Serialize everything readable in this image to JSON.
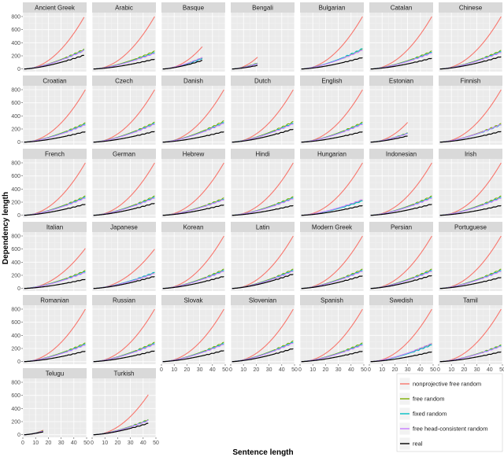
{
  "chart_data": {
    "type": "line",
    "layout": "faceted",
    "xlabel": "Sentence length",
    "ylabel": "Dependency length",
    "xlim": [
      0,
      50
    ],
    "ylim": [
      -40,
      860
    ],
    "x_ticks": [
      0,
      10,
      20,
      30,
      40,
      50
    ],
    "y_ticks": [
      0,
      200,
      400,
      600,
      800
    ],
    "grid": true,
    "legend_position": "bottom-right",
    "series": [
      {
        "name": "nonprojective free random",
        "color": "#f8766d"
      },
      {
        "name": "free random",
        "color": "#7cae00"
      },
      {
        "name": "fixed random",
        "color": "#00bfc4"
      },
      {
        "name": "free head-consistent random",
        "color": "#c77cff"
      },
      {
        "name": "real",
        "color": "#000000"
      }
    ],
    "panels": [
      {
        "language": "Ancient Greek",
        "max_n": 48,
        "nonprojective_end": 790,
        "free_end": 300,
        "fixed_end": 285,
        "head_end": 280,
        "real_end": 210
      },
      {
        "language": "Arabic",
        "max_n": 49,
        "nonprojective_end": 800,
        "free_end": 270,
        "fixed_end": 250,
        "head_end": 240,
        "real_end": 150
      },
      {
        "language": "Basque",
        "max_n": 32,
        "nonprojective_end": 340,
        "free_end": 170,
        "fixed_end": 160,
        "head_end": 175,
        "real_end": 130
      },
      {
        "language": "Bengali",
        "max_n": 21,
        "nonprojective_end": 180,
        "free_end": 90,
        "fixed_end": 85,
        "head_end": 80,
        "real_end": 55
      },
      {
        "language": "Bulgarian",
        "max_n": 49,
        "nonprojective_end": 800,
        "free_end": 300,
        "fixed_end": 310,
        "head_end": 290,
        "real_end": 175
      },
      {
        "language": "Catalan",
        "max_n": 49,
        "nonprojective_end": 800,
        "free_end": 270,
        "fixed_end": 255,
        "head_end": 245,
        "real_end": 165
      },
      {
        "language": "Chinese",
        "max_n": 49,
        "nonprojective_end": 800,
        "free_end": 280,
        "fixed_end": 265,
        "head_end": 255,
        "real_end": 190
      },
      {
        "language": "Croatian",
        "max_n": 49,
        "nonprojective_end": 800,
        "free_end": 290,
        "fixed_end": 275,
        "head_end": 265,
        "real_end": 160
      },
      {
        "language": "Czech",
        "max_n": 49,
        "nonprojective_end": 800,
        "free_end": 300,
        "fixed_end": 285,
        "head_end": 275,
        "real_end": 165
      },
      {
        "language": "Danish",
        "max_n": 49,
        "nonprojective_end": 800,
        "free_end": 320,
        "fixed_end": 300,
        "head_end": 290,
        "real_end": 160
      },
      {
        "language": "Dutch",
        "max_n": 49,
        "nonprojective_end": 800,
        "free_end": 310,
        "fixed_end": 290,
        "head_end": 280,
        "real_end": 200
      },
      {
        "language": "English",
        "max_n": 49,
        "nonprojective_end": 800,
        "free_end": 300,
        "fixed_end": 285,
        "head_end": 275,
        "real_end": 160
      },
      {
        "language": "Estonian",
        "max_n": 30,
        "nonprojective_end": 300,
        "free_end": 140,
        "fixed_end": 135,
        "head_end": 130,
        "real_end": 95
      },
      {
        "language": "Finnish",
        "max_n": 49,
        "nonprojective_end": 800,
        "free_end": 280,
        "fixed_end": 265,
        "head_end": 270,
        "real_end": 165
      },
      {
        "language": "French",
        "max_n": 49,
        "nonprojective_end": 800,
        "free_end": 290,
        "fixed_end": 275,
        "head_end": 265,
        "real_end": 170
      },
      {
        "language": "German",
        "max_n": 49,
        "nonprojective_end": 800,
        "free_end": 290,
        "fixed_end": 275,
        "head_end": 265,
        "real_end": 185
      },
      {
        "language": "Hebrew",
        "max_n": 49,
        "nonprojective_end": 800,
        "free_end": 260,
        "fixed_end": 245,
        "head_end": 240,
        "real_end": 160
      },
      {
        "language": "Hindi",
        "max_n": 49,
        "nonprojective_end": 800,
        "free_end": 280,
        "fixed_end": 265,
        "head_end": 255,
        "real_end": 150
      },
      {
        "language": "Hungarian",
        "max_n": 49,
        "nonprojective_end": 800,
        "free_end": 230,
        "fixed_end": 220,
        "head_end": 240,
        "real_end": 150
      },
      {
        "language": "Indonesian",
        "max_n": 49,
        "nonprojective_end": 800,
        "free_end": 290,
        "fixed_end": 275,
        "head_end": 265,
        "real_end": 170
      },
      {
        "language": "Irish",
        "max_n": 49,
        "nonprojective_end": 800,
        "free_end": 290,
        "fixed_end": 275,
        "head_end": 265,
        "real_end": 150
      },
      {
        "language": "Italian",
        "max_n": 49,
        "nonprojective_end": 610,
        "free_end": 270,
        "fixed_end": 255,
        "head_end": 245,
        "real_end": 140
      },
      {
        "language": "Japanese",
        "max_n": 49,
        "nonprojective_end": 600,
        "free_end": 240,
        "fixed_end": 245,
        "head_end": 230,
        "real_end": 185
      },
      {
        "language": "Korean",
        "max_n": 49,
        "nonprojective_end": 800,
        "free_end": 290,
        "fixed_end": 275,
        "head_end": 265,
        "real_end": 185
      },
      {
        "language": "Latin",
        "max_n": 49,
        "nonprojective_end": 800,
        "free_end": 290,
        "fixed_end": 275,
        "head_end": 265,
        "real_end": 220
      },
      {
        "language": "Modern Greek",
        "max_n": 49,
        "nonprojective_end": 800,
        "free_end": 290,
        "fixed_end": 275,
        "head_end": 265,
        "real_end": 195
      },
      {
        "language": "Persian",
        "max_n": 49,
        "nonprojective_end": 800,
        "free_end": 290,
        "fixed_end": 275,
        "head_end": 265,
        "real_end": 200
      },
      {
        "language": "Portuguese",
        "max_n": 49,
        "nonprojective_end": 800,
        "free_end": 290,
        "fixed_end": 275,
        "head_end": 265,
        "real_end": 170
      },
      {
        "language": "Romanian",
        "max_n": 49,
        "nonprojective_end": 800,
        "free_end": 280,
        "fixed_end": 265,
        "head_end": 255,
        "real_end": 160
      },
      {
        "language": "Russian",
        "max_n": 49,
        "nonprojective_end": 800,
        "free_end": 290,
        "fixed_end": 275,
        "head_end": 265,
        "real_end": 165
      },
      {
        "language": "Slovak",
        "max_n": 49,
        "nonprojective_end": 800,
        "free_end": 290,
        "fixed_end": 275,
        "head_end": 265,
        "real_end": 170
      },
      {
        "language": "Slovenian",
        "max_n": 49,
        "nonprojective_end": 800,
        "free_end": 310,
        "fixed_end": 295,
        "head_end": 285,
        "real_end": 200
      },
      {
        "language": "Spanish",
        "max_n": 49,
        "nonprojective_end": 800,
        "free_end": 280,
        "fixed_end": 265,
        "head_end": 255,
        "real_end": 160
      },
      {
        "language": "Swedish",
        "max_n": 49,
        "nonprojective_end": 800,
        "free_end": 270,
        "fixed_end": 255,
        "head_end": 275,
        "real_end": 150
      },
      {
        "language": "Tamil",
        "max_n": 49,
        "nonprojective_end": 800,
        "free_end": 250,
        "fixed_end": 240,
        "head_end": 235,
        "real_end": 150
      },
      {
        "language": "Telugu",
        "max_n": 16,
        "nonprojective_end": 70,
        "free_end": 60,
        "fixed_end": 55,
        "head_end": 55,
        "real_end": 45
      },
      {
        "language": "Turkish",
        "max_n": 44,
        "nonprojective_end": 610,
        "free_end": 230,
        "fixed_end": 220,
        "head_end": 215,
        "real_end": 175
      }
    ]
  }
}
